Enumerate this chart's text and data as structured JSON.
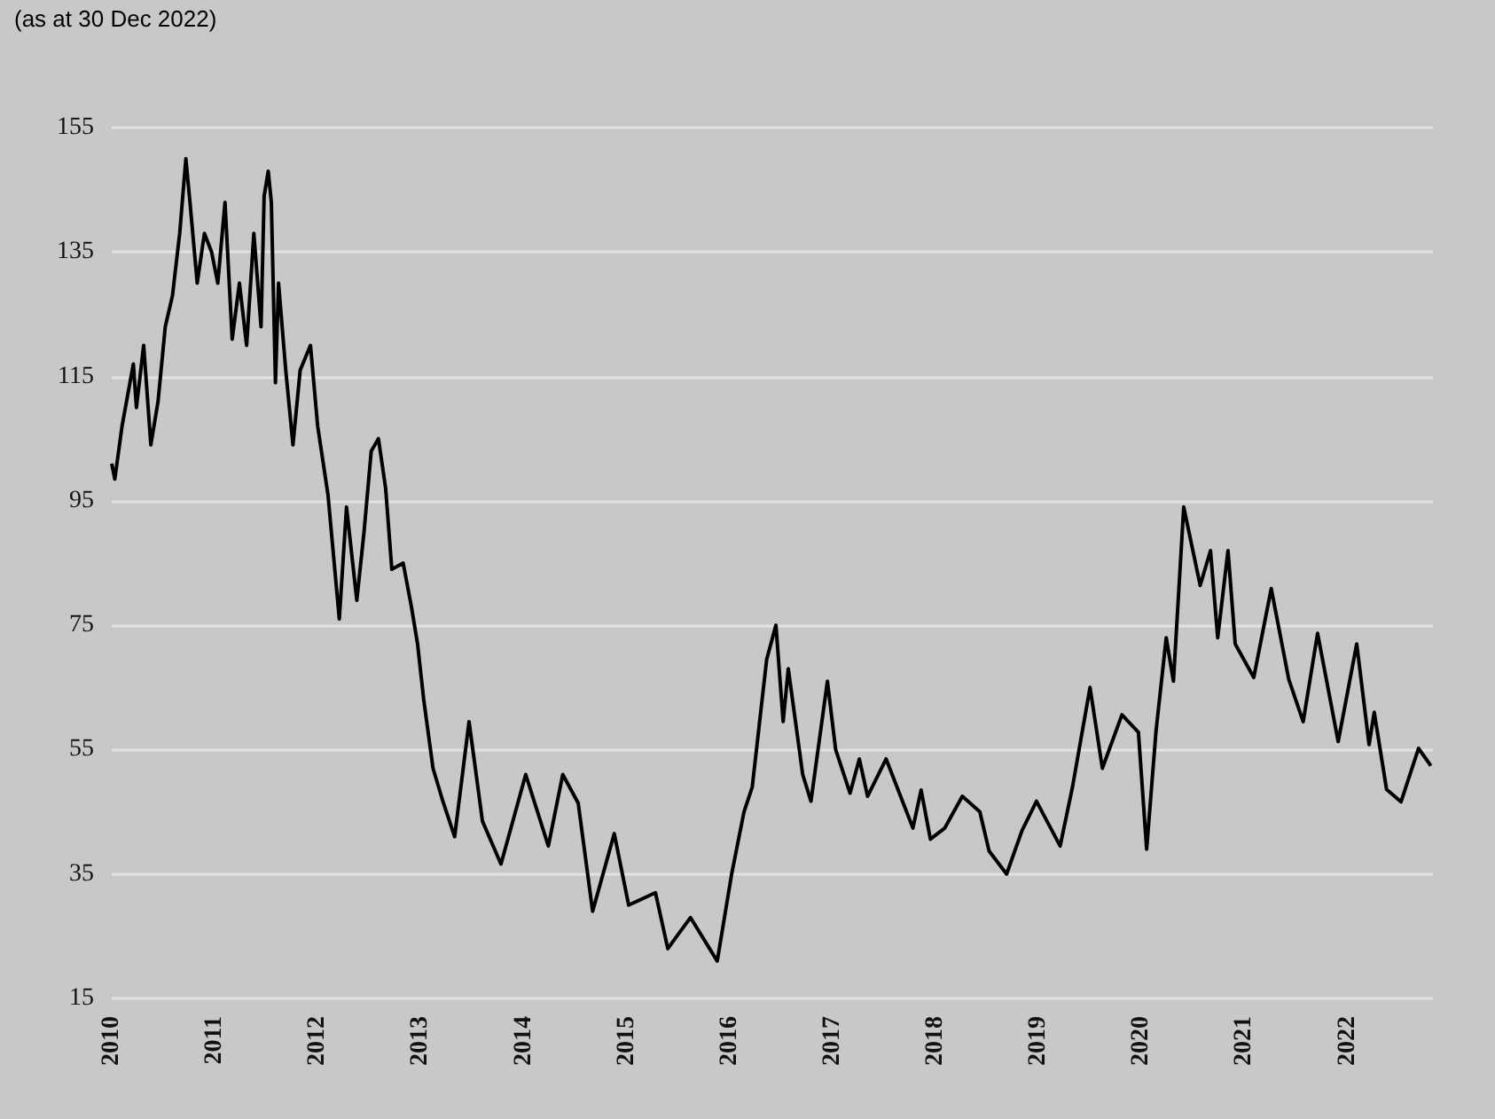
{
  "chart_data": {
    "type": "line",
    "annotations": [
      "(as at 30 Dec 2022)"
    ],
    "x": [
      2010.0,
      2010.03,
      2010.1,
      2010.21,
      2010.24,
      2010.31,
      2010.38,
      2010.45,
      2010.52,
      2010.59,
      2010.66,
      2010.72,
      2010.76,
      2010.83,
      2010.9,
      2010.97,
      2011.03,
      2011.1,
      2011.17,
      2011.24,
      2011.31,
      2011.38,
      2011.45,
      2011.48,
      2011.52,
      2011.55,
      2011.59,
      2011.62,
      2011.69,
      2011.76,
      2011.83,
      2011.93,
      2012.0,
      2012.1,
      2012.21,
      2012.28,
      2012.38,
      2012.45,
      2012.52,
      2012.59,
      2012.66,
      2012.72,
      2012.83,
      2012.91,
      2012.97,
      2013.03,
      2013.12,
      2013.21,
      2013.33,
      2013.47,
      2013.6,
      2013.78,
      2014.02,
      2014.24,
      2014.38,
      2014.53,
      2014.67,
      2014.88,
      2015.02,
      2015.28,
      2015.4,
      2015.62,
      2015.88,
      2016.02,
      2016.14,
      2016.22,
      2016.36,
      2016.45,
      2016.52,
      2016.57,
      2016.71,
      2016.79,
      2016.95,
      2017.03,
      2017.17,
      2017.26,
      2017.34,
      2017.52,
      2017.78,
      2017.86,
      2017.95,
      2018.09,
      2018.26,
      2018.43,
      2018.52,
      2018.69,
      2018.84,
      2018.98,
      2019.21,
      2019.33,
      2019.5,
      2019.62,
      2019.81,
      2019.97,
      2020.05,
      2020.14,
      2020.24,
      2020.31,
      2020.41,
      2020.57,
      2020.67,
      2020.74,
      2020.84,
      2020.91,
      2021.09,
      2021.26,
      2021.43,
      2021.57,
      2021.71,
      2021.91,
      2022.09,
      2022.21,
      2022.26,
      2022.38,
      2022.52,
      2022.69,
      2022.81
    ],
    "series": [
      {
        "color": "#000000",
        "values": [
          101,
          98.5,
          107,
          117,
          110,
          120,
          104,
          111,
          123,
          128,
          138,
          150,
          143,
          130,
          138,
          135,
          130,
          143,
          121,
          130,
          120,
          138,
          123,
          144,
          148,
          143,
          114,
          130,
          116,
          104,
          116,
          120,
          107,
          96,
          76,
          94,
          79,
          90,
          103,
          105,
          97,
          84,
          85,
          78,
          72,
          63,
          52,
          47,
          41,
          59.5,
          43.5,
          36.6,
          51,
          39.5,
          51,
          46.4,
          29,
          41.5,
          30,
          32,
          23,
          28,
          21,
          35,
          45,
          49,
          69.5,
          75,
          59.5,
          68,
          51,
          46.7,
          66,
          55,
          48,
          53.5,
          47.5,
          53.5,
          42.4,
          48.5,
          40.6,
          42.4,
          47.5,
          45,
          38.7,
          35,
          42,
          46.7,
          39.5,
          49,
          65,
          52,
          60.6,
          57.8,
          39,
          57.8,
          73,
          66,
          94,
          81.4,
          87,
          73,
          87,
          72,
          66.6,
          80.9,
          66.3,
          59.5,
          73.7,
          56.3,
          72,
          55.8,
          61,
          48.6,
          46.6,
          55.2,
          52.4
        ]
      }
    ],
    "xlim": [
      2010,
      2022.83
    ],
    "xticks": [
      2010,
      2011,
      2012,
      2013,
      2014,
      2015,
      2016,
      2017,
      2018,
      2019,
      2020,
      2021,
      2022
    ],
    "ylim": [
      15,
      155
    ],
    "yticks": [
      15,
      35,
      55,
      75,
      95,
      115,
      135,
      155
    ],
    "grid": "y",
    "marker": "none",
    "line_style": "solid"
  }
}
